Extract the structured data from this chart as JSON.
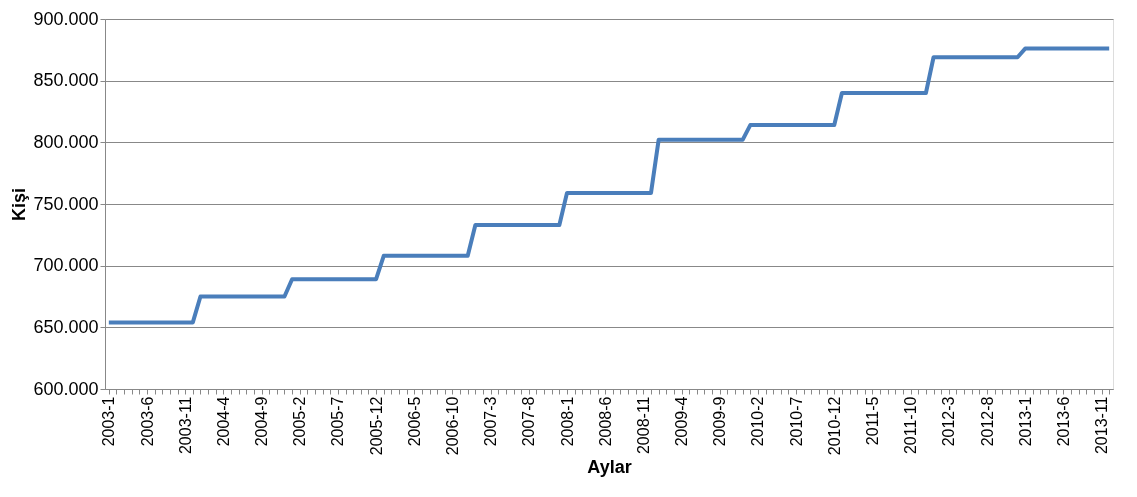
{
  "chart_data": {
    "type": "line",
    "xlabel": "Aylar",
    "ylabel": "Kişi",
    "categories": [
      "2003-1",
      null,
      null,
      null,
      null,
      "2003-6",
      null,
      null,
      null,
      null,
      "2003-11",
      null,
      null,
      null,
      null,
      "2004-4",
      null,
      null,
      null,
      null,
      "2004-9",
      null,
      null,
      null,
      null,
      "2005-2",
      null,
      null,
      null,
      null,
      "2005-7",
      null,
      null,
      null,
      null,
      "2005-12",
      null,
      null,
      null,
      null,
      "2006-5",
      null,
      null,
      null,
      null,
      "2006-10",
      null,
      null,
      null,
      null,
      "2007-3",
      null,
      null,
      null,
      null,
      "2007-8",
      null,
      null,
      null,
      null,
      "2008-1",
      null,
      null,
      null,
      null,
      "2008-6",
      null,
      null,
      null,
      null,
      "2008-11",
      null,
      null,
      null,
      null,
      "2009-4",
      null,
      null,
      null,
      null,
      "2009-9",
      null,
      null,
      null,
      null,
      "2010-2",
      null,
      null,
      null,
      null,
      "2010-7",
      null,
      null,
      null,
      null,
      "2010-12",
      null,
      null,
      null,
      null,
      "2011-5",
      null,
      null,
      null,
      null,
      "2011-10",
      null,
      null,
      null,
      null,
      "2012-3",
      null,
      null,
      null,
      null,
      "2012-8",
      null,
      null,
      null,
      null,
      "2013-1",
      null,
      null,
      null,
      null,
      "2013-6",
      null,
      null,
      null,
      null,
      "2013-11",
      null
    ],
    "series": [
      {
        "color": "#4a7ebb",
        "values": [
          654000,
          654000,
          654000,
          654000,
          654000,
          654000,
          654000,
          654000,
          654000,
          654000,
          654000,
          654000,
          675000,
          675000,
          675000,
          675000,
          675000,
          675000,
          675000,
          675000,
          675000,
          675000,
          675000,
          675000,
          689000,
          689000,
          689000,
          689000,
          689000,
          689000,
          689000,
          689000,
          689000,
          689000,
          689000,
          689000,
          708000,
          708000,
          708000,
          708000,
          708000,
          708000,
          708000,
          708000,
          708000,
          708000,
          708000,
          708000,
          733000,
          733000,
          733000,
          733000,
          733000,
          733000,
          733000,
          733000,
          733000,
          733000,
          733000,
          733000,
          759000,
          759000,
          759000,
          759000,
          759000,
          759000,
          759000,
          759000,
          759000,
          759000,
          759000,
          759000,
          802000,
          802000,
          802000,
          802000,
          802000,
          802000,
          802000,
          802000,
          802000,
          802000,
          802000,
          802000,
          814000,
          814000,
          814000,
          814000,
          814000,
          814000,
          814000,
          814000,
          814000,
          814000,
          814000,
          814000,
          840000,
          840000,
          840000,
          840000,
          840000,
          840000,
          840000,
          840000,
          840000,
          840000,
          840000,
          840000,
          869000,
          869000,
          869000,
          869000,
          869000,
          869000,
          869000,
          869000,
          869000,
          869000,
          869000,
          869000,
          876000,
          876000,
          876000,
          876000,
          876000,
          876000,
          876000,
          876000,
          876000,
          876000,
          876000,
          876000
        ]
      }
    ],
    "ylim": [
      600000,
      900000
    ],
    "yticks": [
      {
        "value": 600000,
        "label": "600.000"
      },
      {
        "value": 650000,
        "label": "650.000"
      },
      {
        "value": 700000,
        "label": "700.000"
      },
      {
        "value": 750000,
        "label": "750.000"
      },
      {
        "value": 800000,
        "label": "800.000"
      },
      {
        "value": 850000,
        "label": "850.000"
      },
      {
        "value": 900000,
        "label": "900.000"
      }
    ],
    "grid": "y",
    "marker": "none",
    "line_style": "solid"
  }
}
